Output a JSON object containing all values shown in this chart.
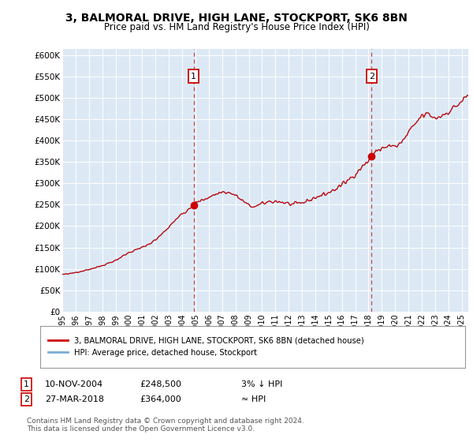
{
  "title": "3, BALMORAL DRIVE, HIGH LANE, STOCKPORT, SK6 8BN",
  "subtitle": "Price paid vs. HM Land Registry's House Price Index (HPI)",
  "background_color": "#dce9f5",
  "yticks": [
    0,
    50000,
    100000,
    150000,
    200000,
    250000,
    300000,
    350000,
    400000,
    450000,
    500000,
    550000,
    600000
  ],
  "xlim_start": 1995.0,
  "xlim_end": 2025.5,
  "ylim": [
    0,
    615000
  ],
  "sale1_date": 2004.86,
  "sale1_price": 248500,
  "sale1_label": "1",
  "sale2_date": 2018.23,
  "sale2_price": 364000,
  "sale2_label": "2",
  "hpi_color": "#7aadd4",
  "price_color": "#cc0000",
  "legend_label1": "3, BALMORAL DRIVE, HIGH LANE, STOCKPORT, SK6 8BN (detached house)",
  "legend_label2": "HPI: Average price, detached house, Stockport",
  "table_row1": [
    "1",
    "10-NOV-2004",
    "£248,500",
    "3% ↓ HPI"
  ],
  "table_row2": [
    "2",
    "27-MAR-2018",
    "£364,000",
    "≈ HPI"
  ],
  "footer": "Contains HM Land Registry data © Crown copyright and database right 2024.\nThis data is licensed under the Open Government Licence v3.0.",
  "xticks": [
    1995,
    1996,
    1997,
    1998,
    1999,
    2000,
    2001,
    2002,
    2003,
    2004,
    2005,
    2006,
    2007,
    2008,
    2009,
    2010,
    2011,
    2012,
    2013,
    2014,
    2015,
    2016,
    2017,
    2018,
    2019,
    2020,
    2021,
    2022,
    2023,
    2024,
    2025
  ]
}
